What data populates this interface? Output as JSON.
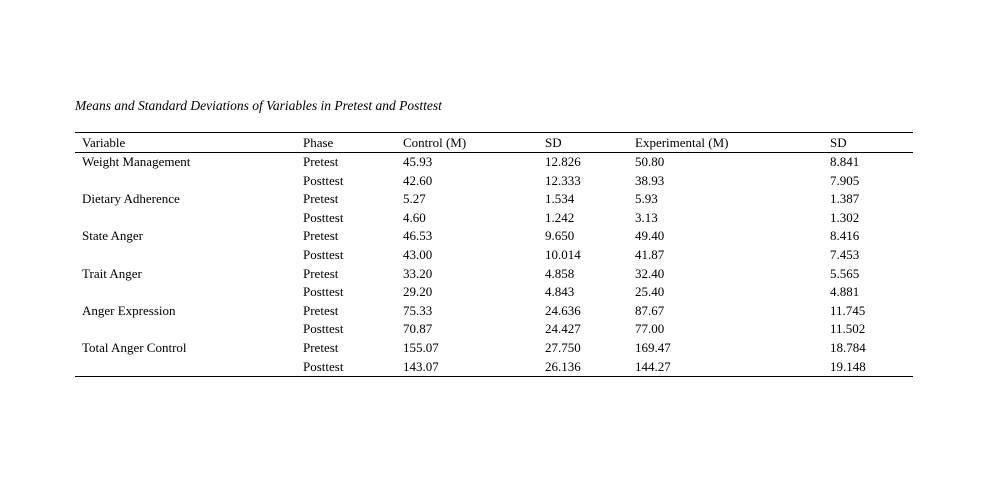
{
  "page": {
    "title": "Means and Standard Deviations of Variables in Pretest and Posttest"
  },
  "table": {
    "columns": [
      "Variable",
      "Phase",
      "Control (M)",
      "SD",
      "Experimental (M)",
      "SD"
    ],
    "rows": [
      [
        "Weight Management",
        "Pretest",
        "45.93",
        "12.826",
        "50.80",
        "8.841"
      ],
      [
        "",
        "Posttest",
        "42.60",
        "12.333",
        "38.93",
        "7.905"
      ],
      [
        "Dietary Adherence",
        "Pretest",
        "5.27",
        "1.534",
        "5.93",
        "1.387"
      ],
      [
        "",
        "Posttest",
        "4.60",
        "1.242",
        "3.13",
        "1.302"
      ],
      [
        "State Anger",
        "Pretest",
        "46.53",
        "9.650",
        "49.40",
        "8.416"
      ],
      [
        "",
        "Posttest",
        "43.00",
        "10.014",
        "41.87",
        "7.453"
      ],
      [
        "Trait Anger",
        "Pretest",
        "33.20",
        "4.858",
        "32.40",
        "5.565"
      ],
      [
        "",
        "Posttest",
        "29.20",
        "4.843",
        "25.40",
        "4.881"
      ],
      [
        "Anger Expression",
        "Pretest",
        "75.33",
        "24.636",
        "87.67",
        "11.745"
      ],
      [
        "",
        "Posttest",
        "70.87",
        "24.427",
        "77.00",
        "11.502"
      ],
      [
        "Total Anger Control",
        "Pretest",
        "155.07",
        "27.750",
        "169.47",
        "18.784"
      ],
      [
        "",
        "Posttest",
        "143.07",
        "26.136",
        "144.27",
        "19.148"
      ]
    ],
    "cell_names": [
      "variable-cell",
      "phase-cell",
      "control-mean-cell",
      "control-sd-cell",
      "experimental-mean-cell",
      "experimental-sd-cell"
    ],
    "text_color": "#000000",
    "background_color": "#ffffff"
  }
}
